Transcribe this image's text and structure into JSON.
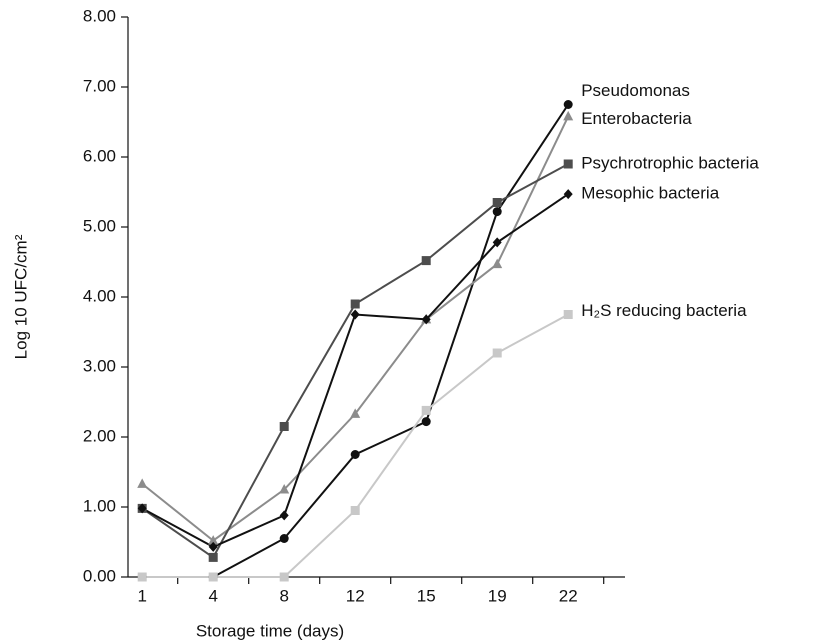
{
  "chart_data": {
    "type": "line",
    "x_label": "Storage time (days)",
    "y_label": "Log 10 UFC/cm²",
    "categories": [
      "1",
      "4",
      "8",
      "12",
      "15",
      "19",
      "22"
    ],
    "ylim": [
      0,
      8
    ],
    "yticks": [
      {
        "value": 0,
        "label": "0.00"
      },
      {
        "value": 1,
        "label": "1.00"
      },
      {
        "value": 2,
        "label": "2.00"
      },
      {
        "value": 3,
        "label": "3.00"
      },
      {
        "value": 4,
        "label": "4.00"
      },
      {
        "value": 5,
        "label": "5.00"
      },
      {
        "value": 6,
        "label": "6.00"
      },
      {
        "value": 7,
        "label": "7.00"
      },
      {
        "value": 8,
        "label": "8.00"
      }
    ],
    "grid": false,
    "series": [
      {
        "name": "Pseudomonas",
        "color": "#111111",
        "marker": "circle",
        "values": [
          0,
          0,
          0.55,
          1.75,
          2.22,
          5.22,
          6.75
        ]
      },
      {
        "name": "Enterobacteria",
        "color": "#8c8c8c",
        "marker": "triangle",
        "values": [
          1.33,
          0.52,
          1.25,
          2.33,
          3.68,
          4.47,
          6.58
        ]
      },
      {
        "name": "Psychrotrophic bacteria",
        "color": "#4d4d4d",
        "marker": "square",
        "values": [
          0.98,
          0.28,
          2.15,
          3.9,
          4.52,
          5.35,
          5.9
        ]
      },
      {
        "name": "Mesophic bacteria",
        "color": "#111111",
        "marker": "diamond",
        "values": [
          0.98,
          0.43,
          0.88,
          3.75,
          3.68,
          4.78,
          5.47
        ]
      },
      {
        "name": "H₂S reducing bacteria",
        "color": "#c8c8c8",
        "marker": "square",
        "values": [
          0,
          0,
          0,
          0.95,
          2.38,
          3.2,
          3.75
        ]
      }
    ]
  }
}
